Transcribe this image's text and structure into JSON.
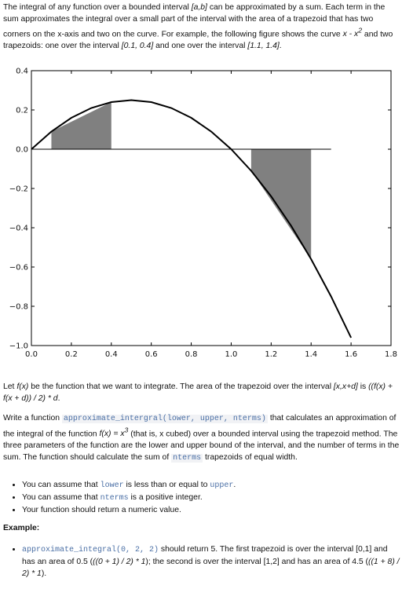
{
  "intro": {
    "p1": "The integral of any function over a bounded interval ",
    "p1_interval": "[a,b]",
    "p2": " can be approximated by a sum. Each term in the sum approximates the integral over a small part of the interval with the area of a trapezoid that has two corners on the x-axis and two on the curve. For example, the following figure shows the curve ",
    "p2_curve": "x - x",
    "p2_curve_exp": "2",
    "p3": " and two trapezoids: one over the interval ",
    "p3_int1": "[0.1, 0.4]",
    "p4": " and one over the interval ",
    "p4_int2": "[1.1, 1.4]",
    "p5": "."
  },
  "chart_data": {
    "type": "line",
    "function": "x - x^2",
    "series": [
      {
        "x": [
          0.0,
          0.1,
          0.2,
          0.3,
          0.4,
          0.5,
          0.6,
          0.7,
          0.8,
          0.9,
          1.0,
          1.1,
          1.2,
          1.3,
          1.4,
          1.5,
          1.6
        ],
        "values": [
          0.0,
          0.09,
          0.16,
          0.21,
          0.24,
          0.25,
          0.24,
          0.21,
          0.16,
          0.09,
          0.0,
          -0.11,
          -0.24,
          -0.39,
          -0.56,
          -0.75,
          -0.96
        ]
      }
    ],
    "trapezoids": [
      {
        "interval": [
          0.1,
          0.4
        ],
        "heights": [
          0.09,
          0.24
        ]
      },
      {
        "interval": [
          1.1,
          1.4
        ],
        "heights": [
          -0.11,
          -0.56
        ]
      }
    ],
    "baseline": {
      "from": 0.0,
      "to": 1.5,
      "y": 0.0
    },
    "xlim": [
      0.0,
      1.8
    ],
    "ylim": [
      -1.0,
      0.4
    ],
    "xticks": [
      "0.0",
      "0.2",
      "0.4",
      "0.6",
      "0.8",
      "1.0",
      "1.2",
      "1.4",
      "1.6",
      "1.8"
    ],
    "yticks": [
      "0.4",
      "0.2",
      "0.0",
      "−0.2",
      "−0.4",
      "−0.6",
      "−0.8",
      "−1.0"
    ],
    "title": "",
    "xlabel": "",
    "ylabel": "",
    "colors": {
      "curve": "#000000",
      "trapezoid": "#808080"
    }
  },
  "desc1": {
    "a": "Let ",
    "fx": "f(x)",
    "b": " be the function that we want to integrate. The area of the trapezoid over the interval ",
    "int": "[x,x+d]",
    "c": " is ",
    "formula": "((f(x) + f(x + d)) / 2) * d",
    "d": "."
  },
  "desc2": {
    "a": "Write a function ",
    "fn": "approximate_intergral(lower, upper, nterms)",
    "b": " that calculates an approximation of the integral of the function ",
    "fx": "f(x) = x",
    "fx_exp": "3",
    "c": " (that is, x cubed) over a bounded interval using the trapezoid method. The three parameters of the function are the lower and upper bound of the interval, and the number of terms in the sum. The function should calculate the sum of ",
    "nterms": "nterms",
    "d": " trapezoids of equal width."
  },
  "bullets": {
    "b1_a": "You can assume that ",
    "b1_lower": "lower",
    "b1_b": " is less than or equal to ",
    "b1_upper": "upper",
    "b1_c": ".",
    "b2_a": "You can assume that ",
    "b2_nterms": "nterms",
    "b2_b": " is a positive integer.",
    "b3": "Your function should return a numeric value."
  },
  "example": {
    "heading": "Example:",
    "call": "approximate_integral(0, 2, 2)",
    "a": " should return 5. The first trapezoid is over the interval [0,1] and has an area of 0.5 (",
    "f1": "((0 + 1) / 2) * 1",
    "b": "); the second is over the interval [1,2] and has an area of 4.5 (",
    "f2": "((1 + 8) / 2) * 1",
    "c": ")."
  }
}
